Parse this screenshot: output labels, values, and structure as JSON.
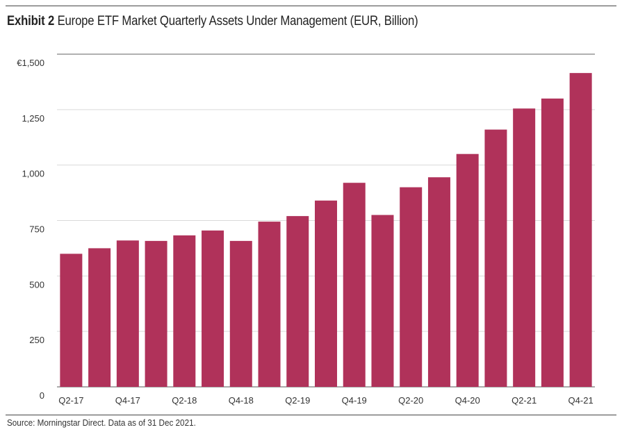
{
  "header": {
    "title_bold": "Exhibit 2",
    "title_rest": " Europe ETF Market Quarterly Assets Under Management (EUR, Billion)"
  },
  "footer": {
    "source": "Source: Morningstar Direct. Data as of 31 Dec 2021."
  },
  "colors": {
    "bar": "#b0325a",
    "grid": "#d9d9d9",
    "top_grid": "#b0b0b0",
    "baseline": "#555555",
    "tick_text": "#333333"
  },
  "chart_data": {
    "type": "bar",
    "title": "Europe ETF Market Quarterly Assets Under Management (EUR, Billion)",
    "categories": [
      "Q2-17",
      "Q3-17",
      "Q4-17",
      "Q1-18",
      "Q2-18",
      "Q3-18",
      "Q4-18",
      "Q1-19",
      "Q2-19",
      "Q3-19",
      "Q4-19",
      "Q1-20",
      "Q2-20",
      "Q3-20",
      "Q4-20",
      "Q1-21",
      "Q2-21",
      "Q3-21",
      "Q4-21"
    ],
    "category_labels_shown": [
      "Q2-17",
      "",
      "Q4-17",
      "",
      "Q2-18",
      "",
      "Q4-18",
      "",
      "Q2-19",
      "",
      "Q4-19",
      "",
      "Q2-20",
      "",
      "Q4-20",
      "",
      "Q2-21",
      "",
      "Q4-21"
    ],
    "values": [
      600,
      625,
      660,
      658,
      683,
      705,
      658,
      745,
      770,
      840,
      920,
      775,
      900,
      945,
      1050,
      1160,
      1255,
      1300,
      1415
    ],
    "ylim": [
      0,
      1500
    ],
    "yticks": [
      0,
      250,
      500,
      750,
      1000,
      1250,
      1500
    ],
    "ytick_labels": [
      "0",
      "250",
      "500",
      "750",
      "1,000",
      "1,250",
      "€1,500"
    ],
    "xlabel": "",
    "ylabel": "",
    "grid": true,
    "legend": "none"
  }
}
